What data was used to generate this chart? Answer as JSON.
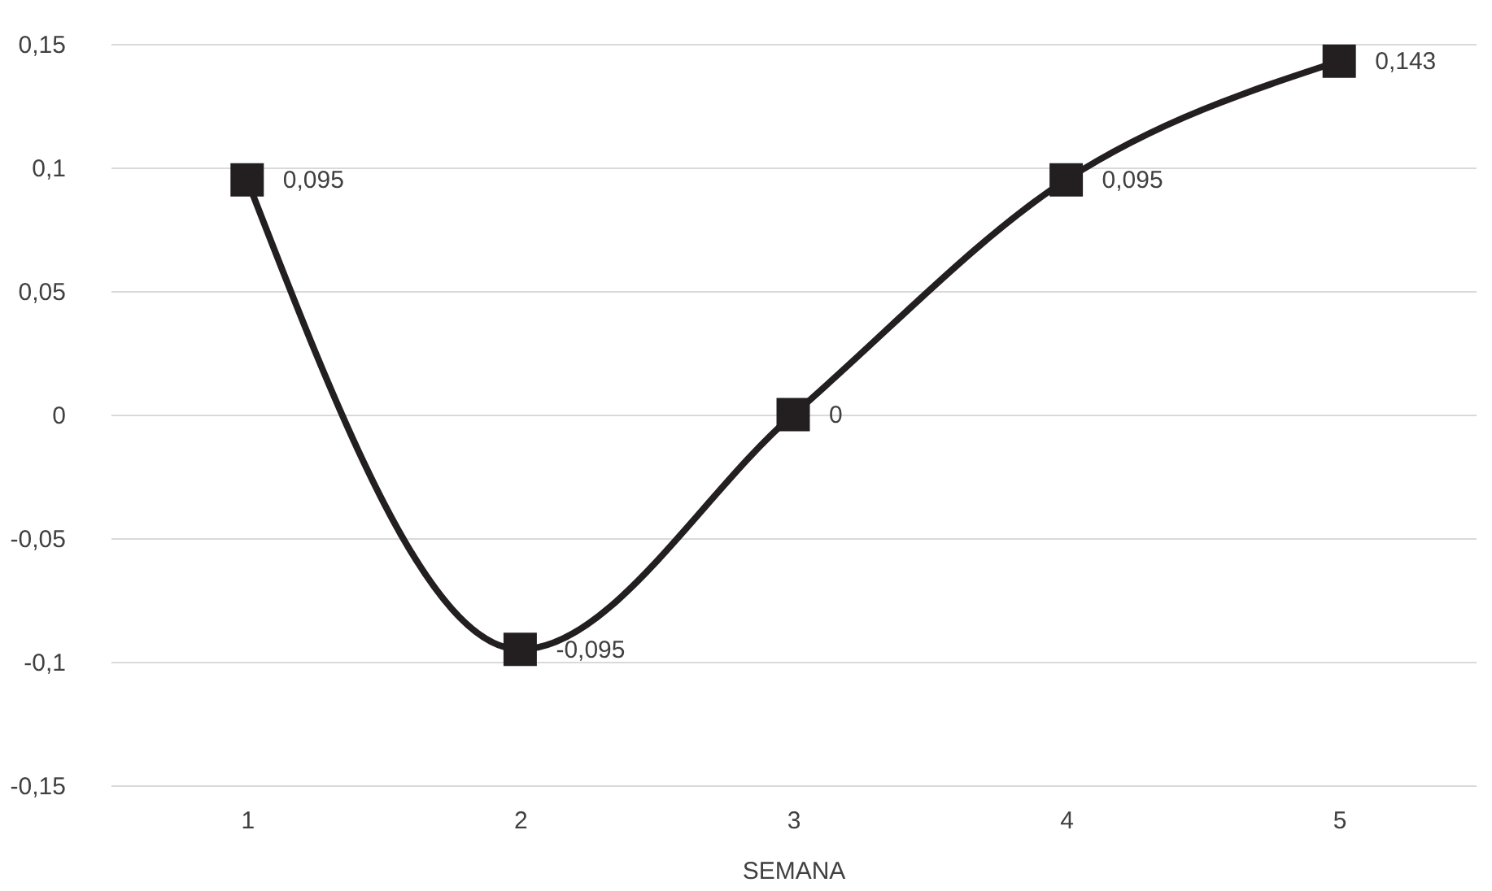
{
  "chart_data": {
    "type": "line",
    "xlabel": "SEMANA",
    "categories": [
      "1",
      "2",
      "3",
      "4",
      "5"
    ],
    "series": [
      {
        "color": "#231f20",
        "values": [
          0.095,
          -0.095,
          0,
          0.095,
          0.143
        ],
        "value_labels": [
          "0,095",
          "-0,095",
          "0",
          "0,095",
          "0,143"
        ]
      }
    ],
    "ylim": [
      -0.15,
      0.15
    ],
    "yticks": [
      {
        "value": -0.15,
        "label": "-0,15"
      },
      {
        "value": -0.1,
        "label": "-0,1"
      },
      {
        "value": -0.05,
        "label": "-0,05"
      },
      {
        "value": 0,
        "label": "0"
      },
      {
        "value": 0.05,
        "label": "0,05"
      },
      {
        "value": 0.1,
        "label": "0,1"
      },
      {
        "value": 0.15,
        "label": "0,15"
      }
    ],
    "grid": "y",
    "marker": "square",
    "line_style": "solid"
  }
}
